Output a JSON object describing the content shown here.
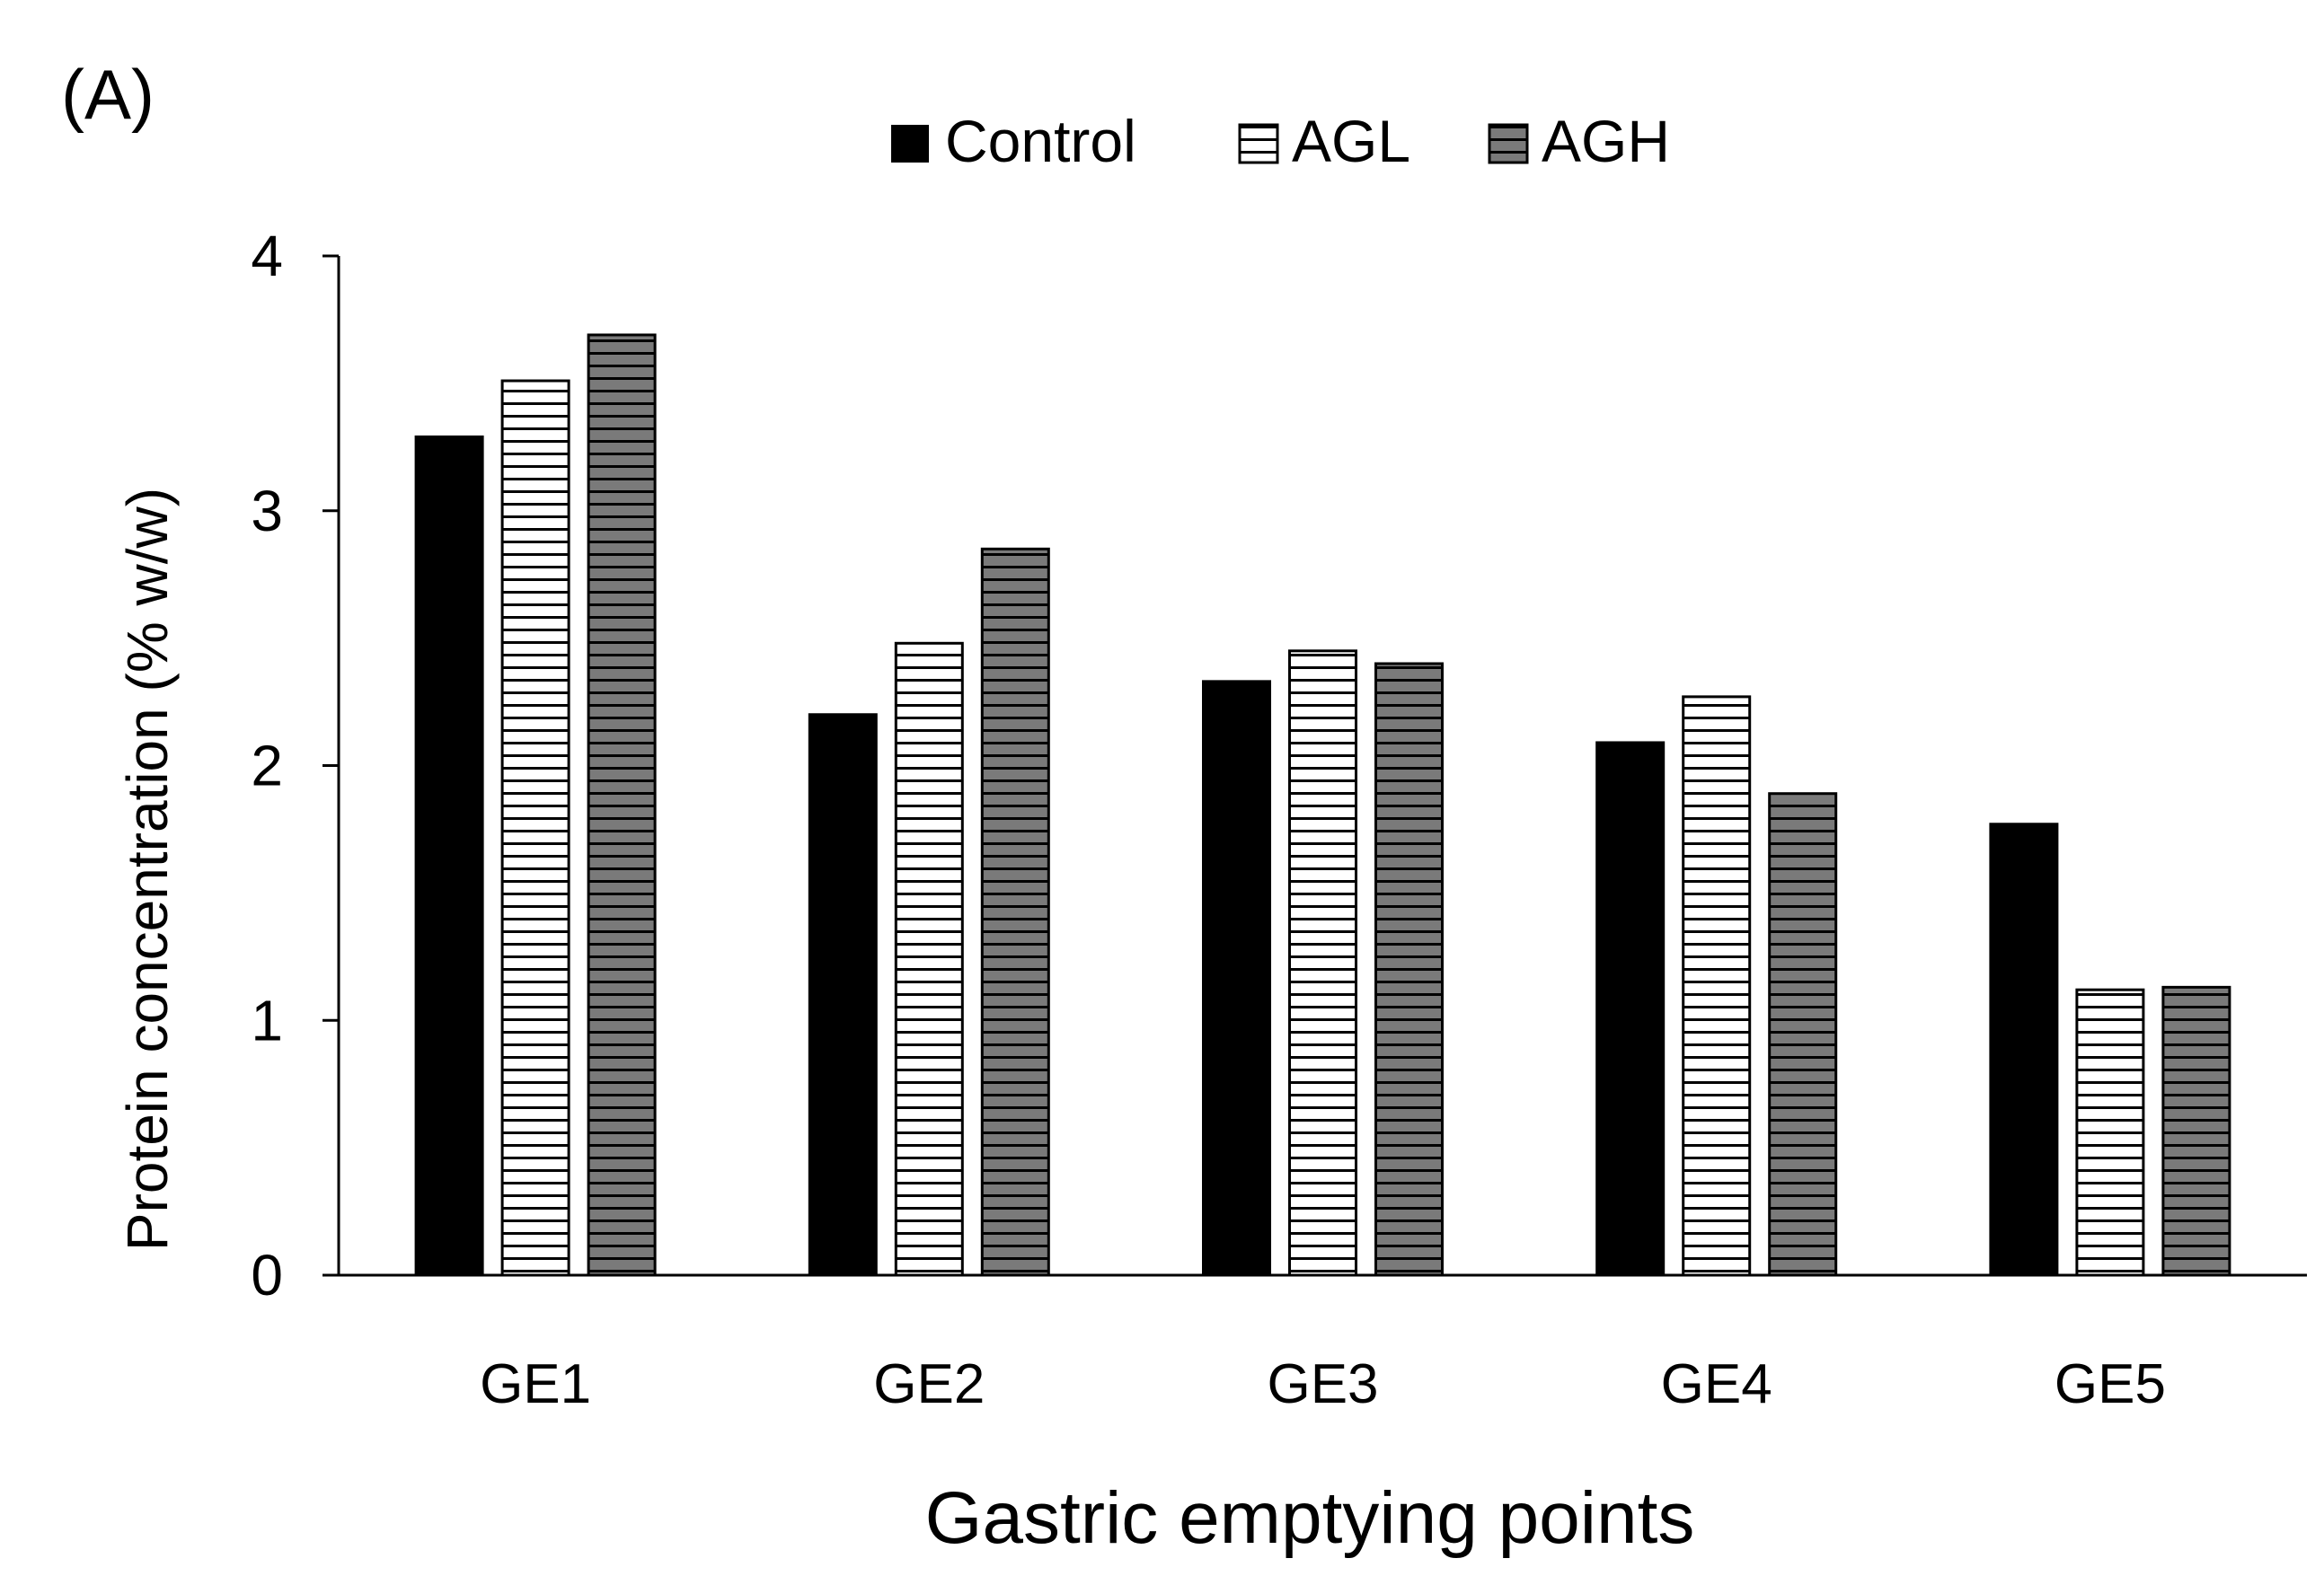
{
  "panel_label": "(A)",
  "chart_data": {
    "type": "bar",
    "title": "",
    "xlabel": "Gastric emptying points",
    "ylabel": "Protein concentration (% w/w)",
    "categories": [
      "GE1",
      "GE2",
      "GE3",
      "GE4",
      "GE5"
    ],
    "ylim": [
      0,
      4
    ],
    "yticks": [
      0,
      1,
      2,
      3,
      4
    ],
    "ytick_labels": [
      "0",
      "1",
      "2",
      "3",
      "4"
    ],
    "grid": false,
    "legend_position": "top-center",
    "series": [
      {
        "name": "Control",
        "pattern": "solid",
        "color": "#000000",
        "values": [
          3.29,
          2.2,
          2.33,
          2.09,
          1.77
        ]
      },
      {
        "name": "AGL",
        "pattern": "horizontal-stripes-light",
        "color": "#ffffff",
        "values": [
          3.51,
          2.48,
          2.45,
          2.27,
          1.12
        ]
      },
      {
        "name": "AGH",
        "pattern": "horizontal-stripes-dark",
        "color": "#777777",
        "values": [
          3.69,
          2.85,
          2.4,
          1.89,
          1.13
        ]
      }
    ]
  }
}
